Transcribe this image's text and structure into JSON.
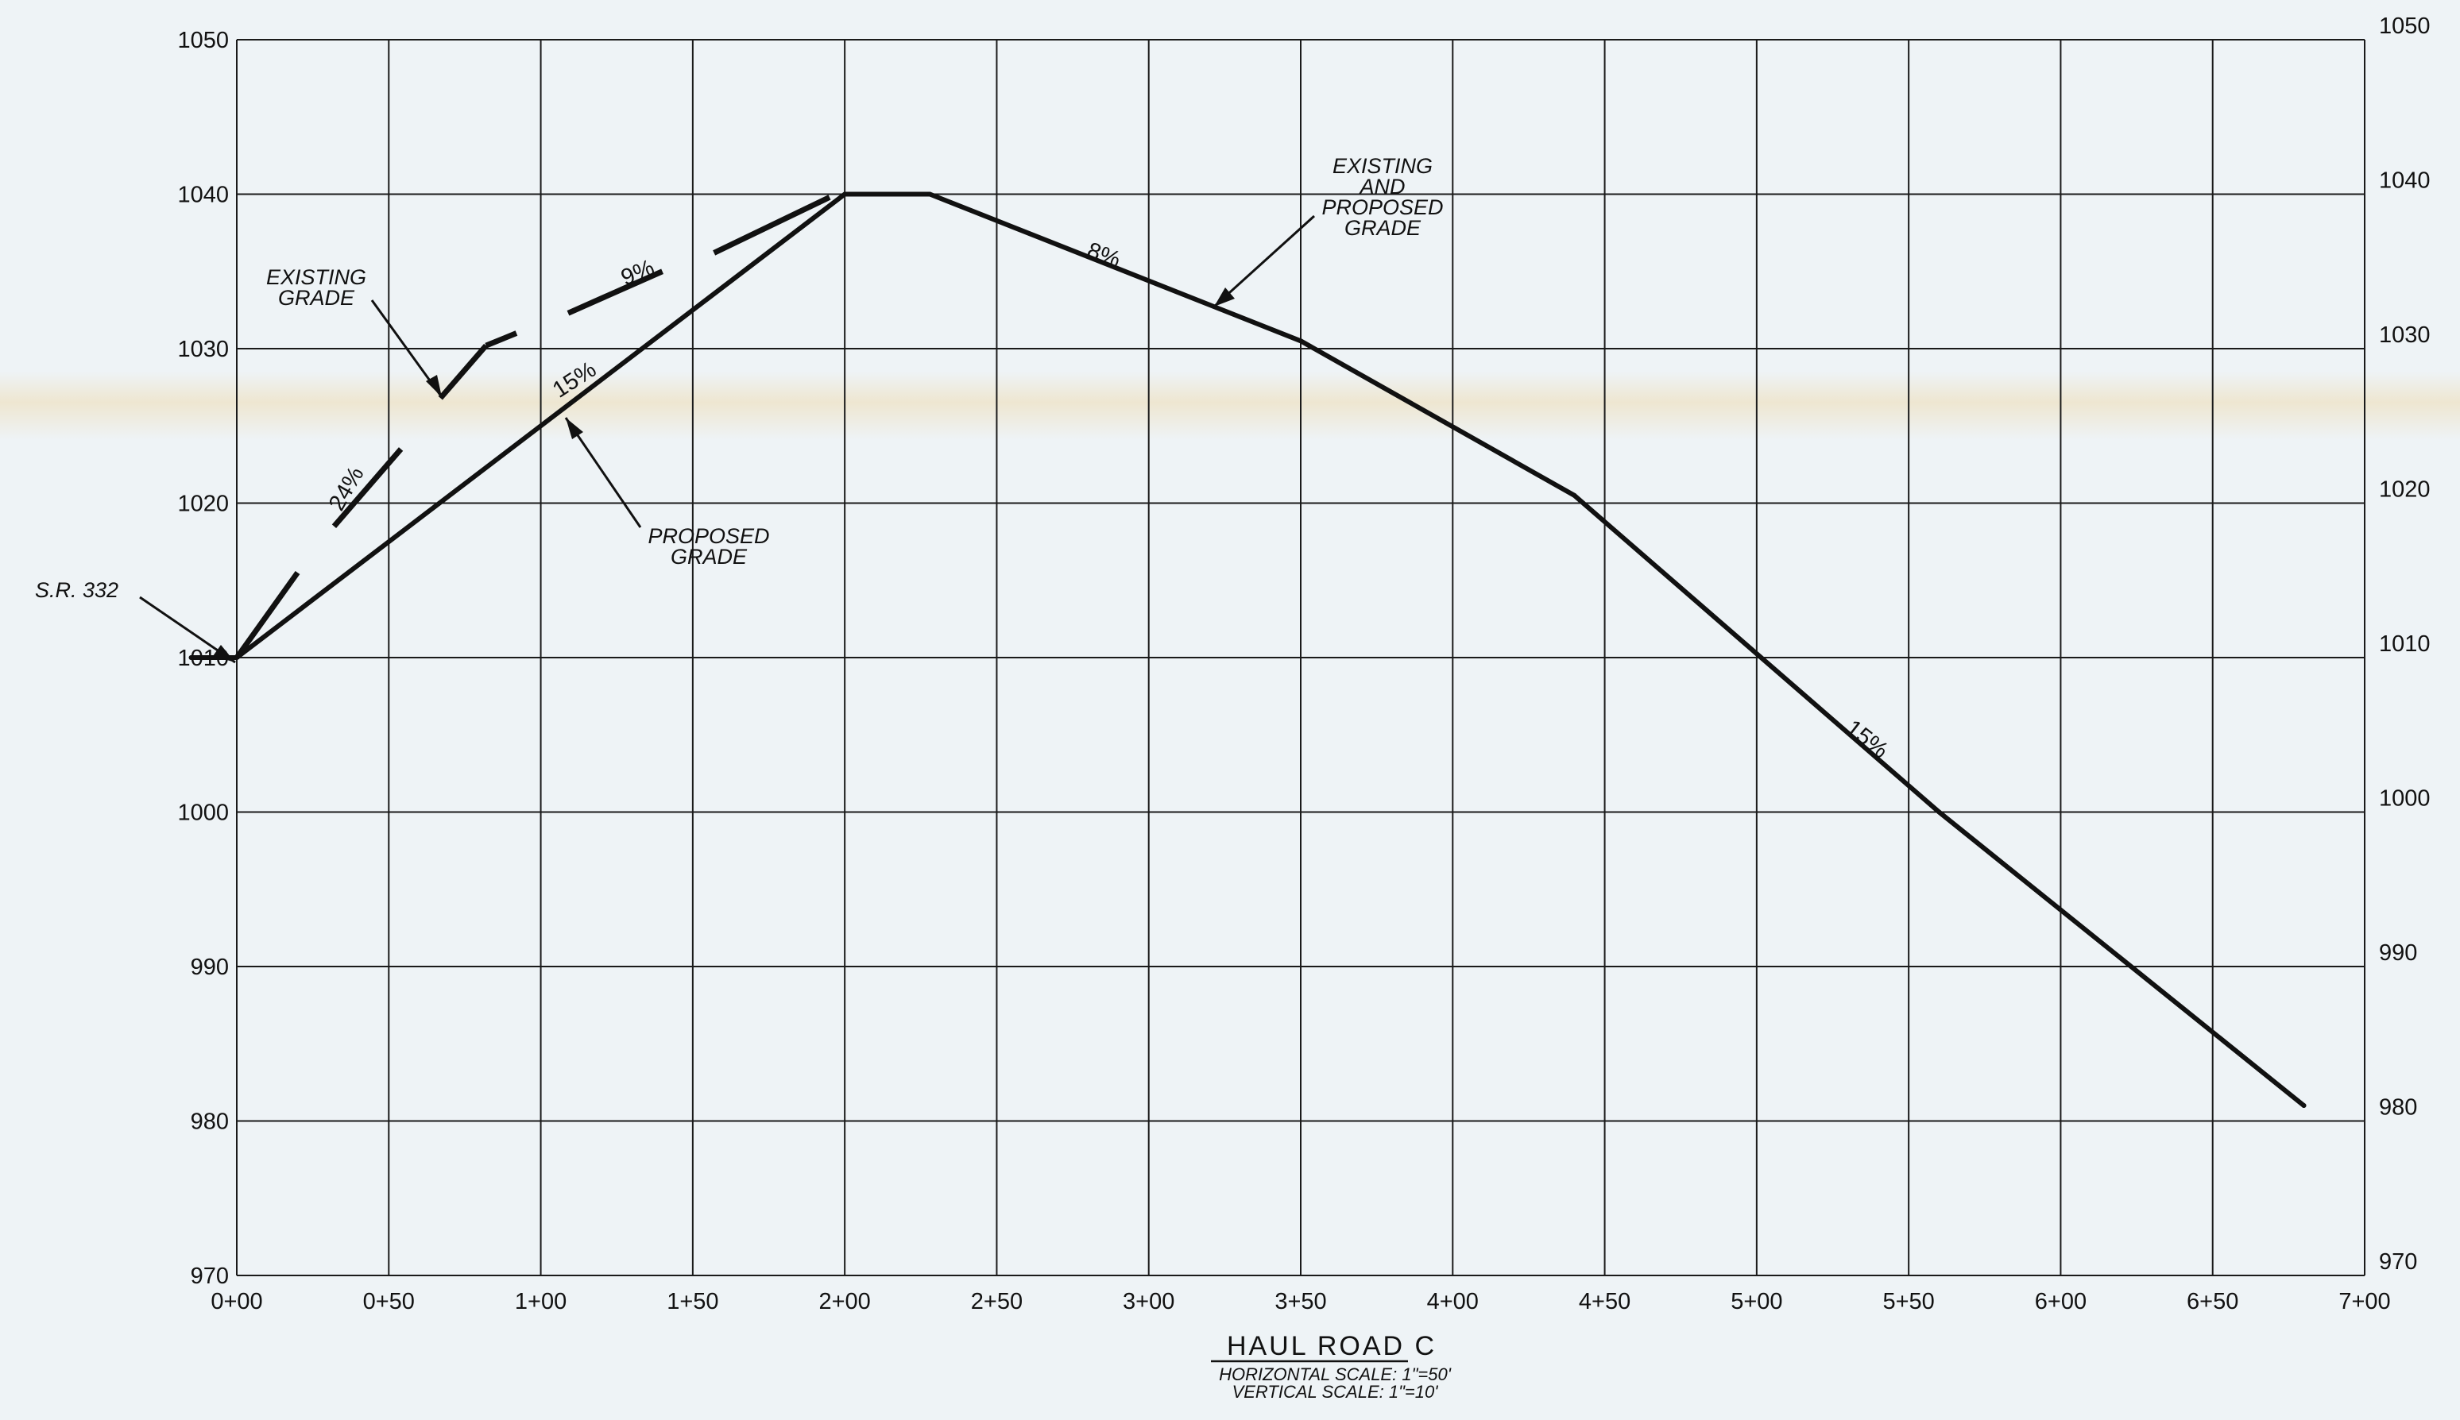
{
  "chart_data": {
    "type": "line",
    "title": "HAUL ROAD C",
    "subtitle_lines": [
      "HORIZONTAL SCALE: 1\"=50'",
      "VERTICAL SCALE: 1\"=10'"
    ],
    "xlabel": "",
    "ylabel": "",
    "x_ticks": [
      "0+00",
      "0+50",
      "1+00",
      "1+50",
      "2+00",
      "2+50",
      "3+00",
      "3+50",
      "4+00",
      "4+50",
      "5+00",
      "5+50",
      "6+00",
      "6+50",
      "7+00"
    ],
    "y_ticks": [
      970,
      980,
      990,
      1000,
      1010,
      1020,
      1030,
      1040,
      1050
    ],
    "xlim": [
      0,
      700
    ],
    "ylim": [
      970,
      1050
    ],
    "grid": true,
    "series": [
      {
        "name": "",
        "style": "solid",
        "x": [
          -15,
          0,
          200,
          228,
          350,
          440,
          560,
          680
        ],
        "y": [
          1010.0,
          1010.0,
          1040.0,
          1040.0,
          1030.5,
          1020.5,
          1000.0,
          981.0
        ]
      },
      {
        "name": "",
        "style": "segments",
        "segments": [
          [
            [
              0,
              1010.0
            ],
            [
              20,
              1015.5
            ]
          ],
          [
            [
              32,
              1018.5
            ],
            [
              54,
              1023.5
            ]
          ],
          [
            [
              67,
              1026.8
            ],
            [
              82,
              1030.2
            ]
          ],
          [
            [
              82,
              1030.2
            ],
            [
              92,
              1031.0
            ]
          ],
          [
            [
              109,
              1032.3
            ],
            [
              140,
              1035.0
            ]
          ],
          [
            [
              157,
              1036.2
            ],
            [
              195,
              1039.8
            ]
          ]
        ]
      }
    ],
    "annotations": {
      "sr_label": "S.R. 332",
      "existing_grade": [
        "EXISTING",
        "GRADE"
      ],
      "proposed_grade": [
        "PROPOSED",
        "GRADE"
      ],
      "existing_and_proposed": [
        "EXISTING",
        "AND",
        "PROPOSED",
        "GRADE"
      ]
    },
    "slope_labels": [
      "24%",
      "15%",
      "9%",
      "8%",
      "15%"
    ]
  }
}
